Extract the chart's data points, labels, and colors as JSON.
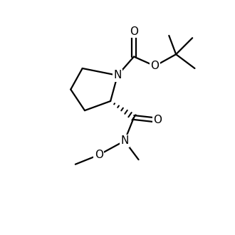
{
  "bg_color": "#ffffff",
  "line_color": "#000000",
  "line_width": 1.6,
  "font_size": 10,
  "figsize": [
    3.3,
    3.3
  ],
  "dpi": 100,
  "xlim": [
    0,
    10
  ],
  "ylim": [
    0,
    10
  ]
}
